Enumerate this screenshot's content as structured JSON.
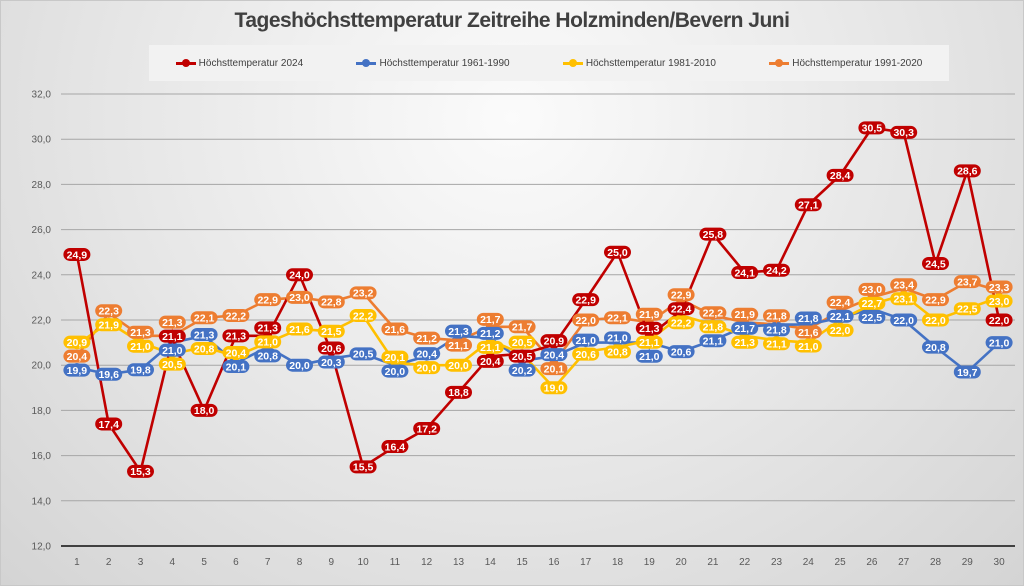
{
  "chart_data": {
    "type": "line",
    "title": "Tageshöchsttemperatur Zeitreihe Holzminden/Bevern Juni",
    "xlabel": "",
    "ylabel": "",
    "ylim": [
      12,
      32
    ],
    "yticks": [
      "12,0",
      "14,0",
      "16,0",
      "18,0",
      "20,0",
      "22,0",
      "24,0",
      "26,0",
      "28,0",
      "30,0",
      "32,0"
    ],
    "grid": true,
    "legend_position": "top",
    "x": [
      1,
      2,
      3,
      4,
      5,
      6,
      7,
      8,
      9,
      10,
      11,
      12,
      13,
      14,
      15,
      16,
      17,
      18,
      19,
      20,
      21,
      22,
      23,
      24,
      25,
      26,
      27,
      28,
      29,
      30
    ],
    "series": [
      {
        "name": "Höchsttemperatur 1991-2020",
        "color": "#ED7D31",
        "values": [
          20.4,
          22.3,
          21.3,
          21.3,
          22.1,
          22.2,
          22.9,
          23.0,
          22.8,
          23.2,
          21.6,
          21.2,
          21.1,
          21.7,
          21.7,
          20.1,
          22.0,
          22.1,
          21.9,
          22.9,
          22.2,
          21.9,
          21.8,
          21.6,
          22.4,
          23.0,
          23.4,
          22.9,
          23.7,
          23.3
        ]
      },
      {
        "name": "Höchsttemperatur 1961-1990",
        "color": "#4472C4",
        "values": [
          19.9,
          19.6,
          19.8,
          21.0,
          21.3,
          20.1,
          20.8,
          20.0,
          20.3,
          20.5,
          20.0,
          20.4,
          21.3,
          21.2,
          20.2,
          20.4,
          21.0,
          21.0,
          21.0,
          20.6,
          21.1,
          21.7,
          21.8,
          21.8,
          22.1,
          22.5,
          22.0,
          20.8,
          19.7,
          21.0
        ]
      },
      {
        "name": "Höchsttemperatur 1981-2010",
        "color": "#FFC000",
        "values": [
          20.9,
          21.9,
          21.0,
          20.5,
          20.8,
          20.4,
          21.0,
          21.6,
          21.5,
          22.2,
          20.1,
          20.0,
          20.0,
          21.1,
          20.5,
          19.0,
          20.6,
          20.8,
          21.1,
          22.2,
          21.8,
          21.3,
          21.1,
          21.0,
          22.0,
          22.7,
          23.1,
          22.0,
          22.5,
          23.0
        ]
      },
      {
        "name": "Höchsttemperatur 2024",
        "color": "#C00000",
        "values": [
          24.9,
          17.4,
          15.3,
          21.1,
          18.0,
          21.3,
          21.3,
          24.0,
          20.6,
          15.5,
          16.4,
          17.2,
          18.8,
          20.4,
          20.5,
          20.9,
          22.9,
          25.0,
          21.3,
          22.4,
          25.8,
          24.1,
          24.2,
          27.1,
          28.4,
          30.5,
          30.3,
          24.5,
          28.6,
          22.0
        ]
      }
    ],
    "legend_order": [
      "Höchsttemperatur 2024",
      "Höchsttemperatur 1961-1990",
      "Höchsttemperatur 1981-2010",
      "Höchsttemperatur 1991-2020"
    ]
  }
}
